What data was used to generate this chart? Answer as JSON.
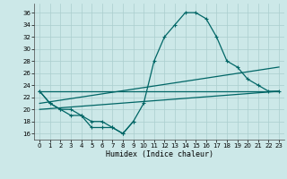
{
  "xlabel": "Humidex (Indice chaleur)",
  "background_color": "#cce8e8",
  "grid_color": "#aacece",
  "line_color": "#006666",
  "xlim": [
    -0.5,
    23.5
  ],
  "ylim": [
    15,
    37.5
  ],
  "xticks": [
    0,
    1,
    2,
    3,
    4,
    5,
    6,
    7,
    8,
    9,
    10,
    11,
    12,
    13,
    14,
    15,
    16,
    17,
    18,
    19,
    20,
    21,
    22,
    23
  ],
  "yticks": [
    16,
    18,
    20,
    22,
    24,
    26,
    28,
    30,
    32,
    34,
    36
  ],
  "series_dip": {
    "x": [
      0,
      1,
      2,
      3,
      4,
      5,
      6,
      7,
      8,
      9
    ],
    "y": [
      23,
      21,
      20,
      19,
      19,
      17,
      17,
      17,
      16,
      18
    ]
  },
  "series_main": {
    "x": [
      0,
      1,
      2,
      3,
      4,
      5,
      6,
      7,
      8,
      9,
      10,
      11,
      12,
      13,
      14,
      15,
      16,
      17,
      18,
      19,
      20,
      21,
      22,
      23
    ],
    "y": [
      23,
      21,
      20,
      20,
      19,
      18,
      18,
      17,
      16,
      18,
      21,
      28,
      32,
      34,
      36,
      36,
      35,
      32,
      28,
      27,
      25,
      24,
      23,
      23
    ]
  },
  "line1": {
    "x": [
      0,
      23
    ],
    "y": [
      23,
      23
    ]
  },
  "line2": {
    "x": [
      0,
      23
    ],
    "y": [
      20,
      23
    ]
  },
  "line3": {
    "x": [
      0,
      23
    ],
    "y": [
      21,
      27
    ]
  }
}
